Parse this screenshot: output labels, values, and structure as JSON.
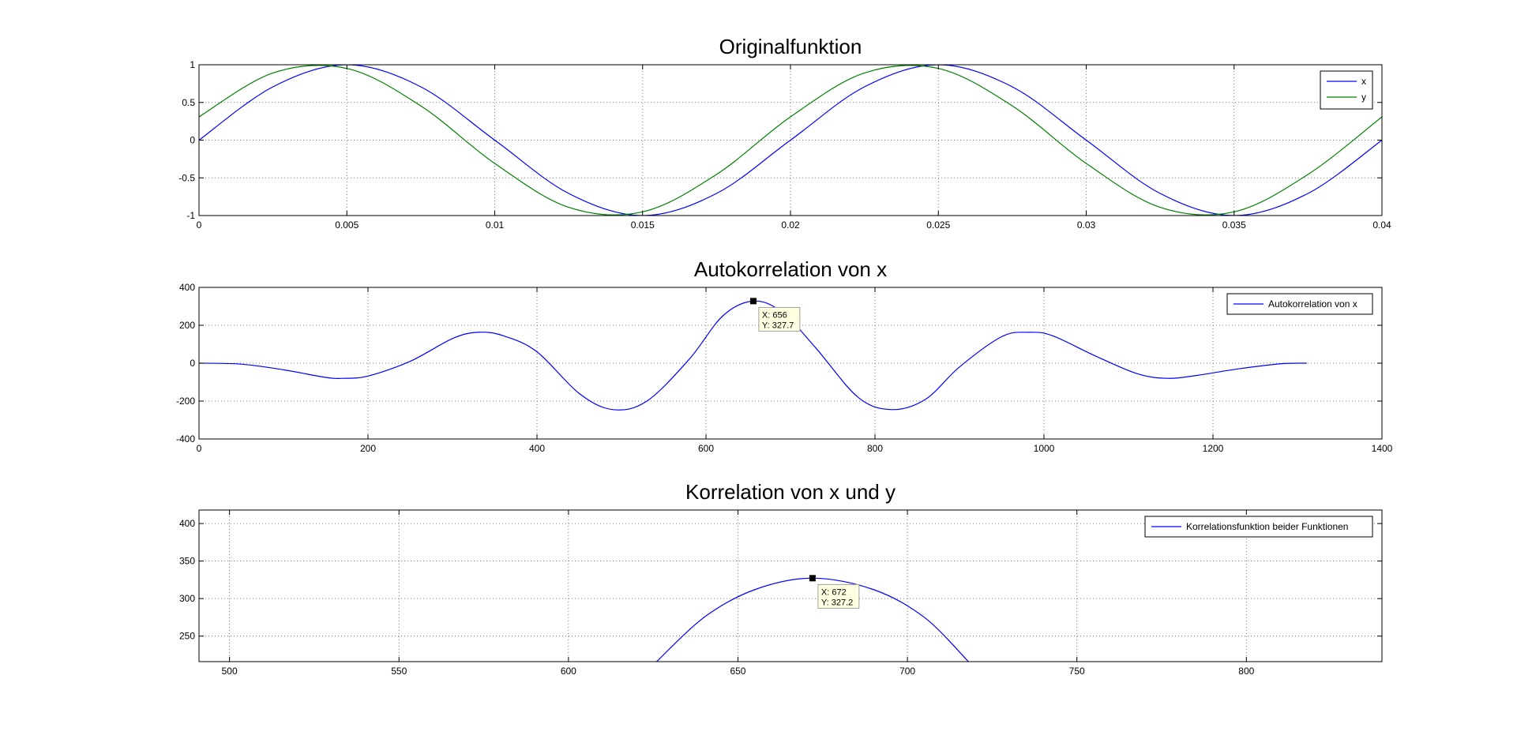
{
  "chart_data": [
    {
      "type": "line",
      "title": "Originalfunktion",
      "xlim": [
        0,
        0.04
      ],
      "ylim": [
        -1,
        1
      ],
      "x_ticks": [
        {
          "v": 0,
          "label": "0"
        },
        {
          "v": 0.005,
          "label": "0.005"
        },
        {
          "v": 0.01,
          "label": "0.01"
        },
        {
          "v": 0.015,
          "label": "0.015"
        },
        {
          "v": 0.02,
          "label": "0.02"
        },
        {
          "v": 0.025,
          "label": "0.025"
        },
        {
          "v": 0.03,
          "label": "0.03"
        },
        {
          "v": 0.035,
          "label": "0.035"
        },
        {
          "v": 0.04,
          "label": "0.04"
        }
      ],
      "y_ticks": [
        {
          "v": 1,
          "label": "1"
        },
        {
          "v": 0.5,
          "label": "0.5"
        },
        {
          "v": 0,
          "label": "0"
        },
        {
          "v": -0.5,
          "label": "-0.5"
        },
        {
          "v": -1,
          "label": "-1"
        }
      ],
      "grid": true,
      "legend": "top-right",
      "series": [
        {
          "name": "x",
          "color": "#0000ff",
          "x": [
            0,
            0.0025,
            0.005,
            0.0075,
            0.01,
            0.0125,
            0.015,
            0.0175,
            0.02,
            0.0225,
            0.025,
            0.0275,
            0.03,
            0.0325,
            0.035,
            0.0375,
            0.04
          ],
          "y": [
            0,
            0.707,
            1,
            0.707,
            0,
            -0.707,
            -1,
            -0.707,
            0,
            0.707,
            1,
            0.707,
            0,
            -0.707,
            -1,
            -0.707,
            0
          ]
        },
        {
          "name": "y",
          "color": "#008000",
          "x": [
            0,
            0.0025,
            0.005,
            0.0075,
            0.01,
            0.0125,
            0.015,
            0.0175,
            0.02,
            0.0225,
            0.025,
            0.0275,
            0.03,
            0.0325,
            0.035,
            0.0375,
            0.04
          ],
          "y": [
            0.309,
            0.891,
            0.951,
            0.454,
            -0.309,
            -0.891,
            -0.951,
            -0.454,
            0.309,
            0.891,
            0.951,
            0.454,
            -0.309,
            -0.891,
            -0.951,
            -0.454,
            0.309
          ]
        }
      ]
    },
    {
      "type": "line",
      "title": "Autokorrelation von x",
      "xlim": [
        0,
        1400
      ],
      "ylim": [
        -400,
        400
      ],
      "x_ticks": [
        {
          "v": 0,
          "label": "0"
        },
        {
          "v": 200,
          "label": "200"
        },
        {
          "v": 400,
          "label": "400"
        },
        {
          "v": 600,
          "label": "600"
        },
        {
          "v": 800,
          "label": "800"
        },
        {
          "v": 1000,
          "label": "1000"
        },
        {
          "v": 1200,
          "label": "1200"
        },
        {
          "v": 1400,
          "label": "1400"
        }
      ],
      "y_ticks": [
        {
          "v": 400,
          "label": "400"
        },
        {
          "v": 200,
          "label": "200"
        },
        {
          "v": 0,
          "label": "0"
        },
        {
          "v": -200,
          "label": "-200"
        },
        {
          "v": -400,
          "label": "-400"
        }
      ],
      "grid": true,
      "legend": "top-right",
      "series": [
        {
          "name": "Autokorrelation von x",
          "color": "#0000ff",
          "x": [
            0,
            50,
            100,
            150,
            170,
            200,
            250,
            300,
            330,
            360,
            400,
            450,
            490,
            530,
            580,
            620,
            656,
            690,
            730,
            780,
            820,
            860,
            900,
            950,
            982,
            1010,
            1060,
            1110,
            1146,
            1180,
            1230,
            1280,
            1311
          ],
          "y": [
            0,
            -5,
            -35,
            -75,
            -80,
            -68,
            10,
            130,
            163,
            145,
            60,
            -160,
            -245,
            -200,
            20,
            250,
            327.7,
            270,
            80,
            -180,
            -245,
            -190,
            -20,
            140,
            163,
            145,
            40,
            -55,
            -80,
            -65,
            -30,
            -3,
            0
          ]
        }
      ],
      "datatip": {
        "x_label": "X: 656",
        "y_label": "Y: 327.7",
        "x": 656,
        "y": 327.7
      }
    },
    {
      "type": "line",
      "title": "Korrelation von x und y",
      "xlim": [
        491,
        840
      ],
      "ylim": [
        216,
        418
      ],
      "x_ticks": [
        {
          "v": 500,
          "label": "500"
        },
        {
          "v": 550,
          "label": "550"
        },
        {
          "v": 600,
          "label": "600"
        },
        {
          "v": 650,
          "label": "650"
        },
        {
          "v": 700,
          "label": "700"
        },
        {
          "v": 750,
          "label": "750"
        },
        {
          "v": 800,
          "label": "800"
        }
      ],
      "y_ticks": [
        {
          "v": 400,
          "label": "400"
        },
        {
          "v": 350,
          "label": "350"
        },
        {
          "v": 300,
          "label": "300"
        },
        {
          "v": 250,
          "label": "250"
        }
      ],
      "grid": true,
      "legend": "top-right",
      "series": [
        {
          "name": "Korrelationsfunktion beider Funktionen",
          "color": "#0000ff",
          "x": [
            626,
            640,
            655,
            672,
            690,
            705,
            718
          ],
          "y": [
            216,
            275,
            312,
            327.2,
            312,
            275,
            216
          ]
        }
      ],
      "datatip": {
        "x_label": "X: 672",
        "y_label": "Y: 327.2",
        "x": 672,
        "y": 327.2
      }
    }
  ]
}
